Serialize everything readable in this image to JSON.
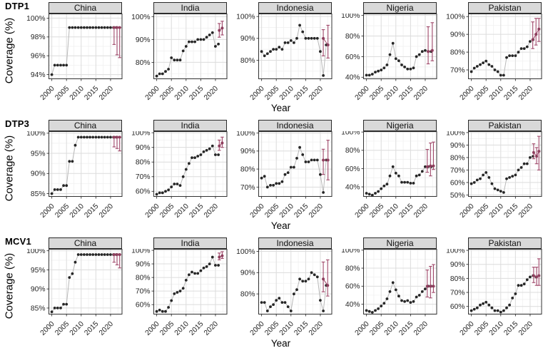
{
  "figure": {
    "row_titles": [
      "DTP1",
      "DTP3",
      "MCV1"
    ],
    "y_axis_title": "Coverage (%)",
    "x_axis_title": "Year",
    "countries": [
      "China",
      "India",
      "Indonesia",
      "Nigeria",
      "Pakistan"
    ],
    "x_ticks": [
      2000,
      2005,
      2010,
      2015,
      2020
    ],
    "xlim": [
      1999,
      2023.9
    ],
    "legend": "none",
    "grid": "major+minor",
    "colors": {
      "point": "#262626",
      "trend_line": "#b8b8b8",
      "survey": "#a0486a",
      "survey_point": "#8f3f5e",
      "strip_bg": "#d9d9d9",
      "panel_border": "#333333",
      "grid_major": "#dcdcdc",
      "grid_minor": "#efefef",
      "axis_text": "#262626"
    }
  },
  "chart_data": [
    {
      "type": "line",
      "vaccine": "DTP1",
      "country": "China",
      "start_year": 2000,
      "y_ticks": [
        94,
        96,
        98,
        100
      ],
      "ylim": [
        93.55,
        100.45
      ],
      "values": [
        94,
        95,
        95,
        95,
        95,
        95,
        99,
        99,
        99,
        99,
        99,
        99,
        99,
        99,
        99,
        99,
        99,
        99,
        99,
        99,
        99,
        99,
        99
      ],
      "survey": [
        {
          "year": 2021.2,
          "value": 99,
          "lo": 97.2,
          "hi": 99
        },
        {
          "year": 2022.2,
          "value": 99,
          "lo": 96.1,
          "hi": 99
        },
        {
          "year": 2023.1,
          "value": 99,
          "lo": 95.8,
          "hi": 99
        }
      ]
    },
    {
      "type": "line",
      "vaccine": "DTP1",
      "country": "India",
      "start_year": 2000,
      "y_ticks": [
        80,
        90,
        100
      ],
      "ylim": [
        72.8,
        101.2
      ],
      "values": [
        74,
        75,
        75,
        76,
        77,
        82,
        81,
        81,
        81,
        85,
        87,
        89,
        89,
        89,
        90,
        90,
        90,
        91,
        92,
        93,
        87,
        88
      ],
      "survey": [
        {
          "year": 2021.3,
          "value": 94,
          "lo": 91,
          "hi": 97
        },
        {
          "year": 2022.3,
          "value": 95,
          "lo": 92,
          "hi": 98
        }
      ]
    },
    {
      "type": "line",
      "vaccine": "DTP1",
      "country": "Indonesia",
      "start_year": 2000,
      "y_ticks": [
        80,
        90,
        100
      ],
      "ylim": [
        71.5,
        101.2
      ],
      "values": [
        84,
        82,
        83,
        84,
        85,
        85,
        86,
        85,
        88,
        88,
        89,
        88,
        90,
        96,
        93,
        90,
        90,
        90,
        90,
        90,
        84,
        73,
        87
      ],
      "survey": [
        {
          "year": 2021,
          "value": 90,
          "lo": 82,
          "hi": 94
        },
        {
          "year": 2022.6,
          "value": 87,
          "lo": 81,
          "hi": 96
        }
      ]
    },
    {
      "type": "line",
      "vaccine": "DTP1",
      "country": "Nigeria",
      "start_year": 2000,
      "y_ticks": [
        40,
        60,
        80,
        100
      ],
      "ylim": [
        38.5,
        101.5
      ],
      "values": [
        42,
        42,
        43,
        45,
        46,
        47,
        49,
        52,
        62,
        73,
        58,
        56,
        52,
        50,
        48,
        48,
        49,
        60,
        62,
        65,
        66,
        65,
        65
      ],
      "survey": [
        {
          "year": 2021,
          "value": 65,
          "lo": 53,
          "hi": 89
        },
        {
          "year": 2022.4,
          "value": 66,
          "lo": 56,
          "hi": 93
        }
      ]
    },
    {
      "type": "line",
      "vaccine": "DTP1",
      "country": "Pakistan",
      "start_year": 2000,
      "y_ticks": [
        70,
        80,
        90,
        100
      ],
      "ylim": [
        65,
        101.5
      ],
      "values": [
        69,
        71,
        72,
        73,
        74,
        75,
        73,
        72,
        70,
        69,
        67,
        67,
        77,
        78,
        78,
        78,
        80,
        82,
        82,
        83,
        86,
        87,
        90
      ],
      "survey": [
        {
          "year": 2020.9,
          "value": 87,
          "lo": 82,
          "hi": 97
        },
        {
          "year": 2022,
          "value": 90,
          "lo": 84,
          "hi": 99
        },
        {
          "year": 2023,
          "value": 93,
          "lo": 86,
          "hi": 99
        }
      ]
    },
    {
      "type": "line",
      "vaccine": "DTP3",
      "country": "China",
      "start_year": 2000,
      "y_ticks": [
        85,
        90,
        95,
        100
      ],
      "ylim": [
        84.3,
        100.4
      ],
      "values": [
        85,
        86,
        86,
        86,
        87,
        87,
        93,
        93,
        97,
        99,
        99,
        99,
        99,
        99,
        99,
        99,
        99,
        99,
        99,
        99,
        99,
        99,
        99
      ],
      "survey": [
        {
          "year": 2021.2,
          "value": 99,
          "lo": 96.6,
          "hi": 99
        },
        {
          "year": 2022.2,
          "value": 99,
          "lo": 96.2,
          "hi": 99
        },
        {
          "year": 2023.1,
          "value": 99,
          "lo": 95.6,
          "hi": 99
        }
      ]
    },
    {
      "type": "line",
      "vaccine": "DTP3",
      "country": "India",
      "start_year": 2000,
      "y_ticks": [
        60,
        70,
        80,
        90,
        100
      ],
      "ylim": [
        56.5,
        100.8
      ],
      "values": [
        58,
        59,
        59,
        60,
        61,
        63,
        65,
        65,
        64,
        70,
        75,
        79,
        83,
        83,
        84,
        85,
        87,
        88,
        89,
        91,
        85,
        85
      ],
      "survey": [
        {
          "year": 2021.3,
          "value": 91,
          "lo": 88,
          "hi": 95
        },
        {
          "year": 2022.3,
          "value": 93,
          "lo": 90,
          "hi": 97
        }
      ]
    },
    {
      "type": "line",
      "vaccine": "DTP3",
      "country": "Indonesia",
      "start_year": 2000,
      "y_ticks": [
        70,
        80,
        90,
        100
      ],
      "ylim": [
        64.8,
        100.8
      ],
      "values": [
        75,
        76,
        70,
        71,
        71,
        72,
        72,
        73,
        77,
        78,
        81,
        81,
        86,
        92,
        88,
        84,
        84,
        85,
        85,
        85,
        77,
        67,
        85
      ],
      "survey": [
        {
          "year": 2021,
          "value": 85,
          "lo": 77,
          "hi": 91
        },
        {
          "year": 2022.6,
          "value": 85,
          "lo": 74,
          "hi": 96
        }
      ]
    },
    {
      "type": "line",
      "vaccine": "DTP3",
      "country": "Nigeria",
      "start_year": 2000,
      "y_ticks": [
        40,
        60,
        80,
        100
      ],
      "ylim": [
        29.5,
        100.5
      ],
      "values": [
        33,
        32,
        31,
        33,
        35,
        38,
        41,
        43,
        52,
        62,
        55,
        52,
        45,
        45,
        45,
        44,
        44,
        52,
        53,
        57,
        62,
        62,
        62
      ],
      "survey": [
        {
          "year": 2020.7,
          "value": 62,
          "lo": 56,
          "hi": 81
        },
        {
          "year": 2021.8,
          "value": 63,
          "lo": 52,
          "hi": 88
        },
        {
          "year": 2022.8,
          "value": 63,
          "lo": 59,
          "hi": 89
        }
      ]
    },
    {
      "type": "line",
      "vaccine": "DTP3",
      "country": "Pakistan",
      "start_year": 2000,
      "y_ticks": [
        50,
        60,
        70,
        80,
        90,
        100
      ],
      "ylim": [
        48.8,
        100.8
      ],
      "values": [
        59,
        60,
        62,
        63,
        66,
        68,
        64,
        59,
        55,
        54,
        53,
        52,
        63,
        64,
        65,
        66,
        70,
        72,
        75,
        75,
        80,
        81
      ],
      "survey": [
        {
          "year": 2021.2,
          "value": 84,
          "lo": 79,
          "hi": 91
        },
        {
          "year": 2022.2,
          "value": 81,
          "lo": 75,
          "hi": 88
        },
        {
          "year": 2023,
          "value": 85,
          "lo": 70,
          "hi": 97
        }
      ]
    },
    {
      "type": "line",
      "vaccine": "MCV1",
      "country": "China",
      "start_year": 2000,
      "y_ticks": [
        85,
        90,
        95,
        100
      ],
      "ylim": [
        83.4,
        100.4
      ],
      "values": [
        84,
        85,
        85,
        85,
        86,
        86,
        93,
        94,
        97,
        99,
        99,
        99,
        99,
        99,
        99,
        99,
        99,
        99,
        99,
        99,
        99,
        99,
        99
      ],
      "survey": [
        {
          "year": 2021.2,
          "value": 99,
          "lo": 97,
          "hi": 99
        },
        {
          "year": 2022.2,
          "value": 99,
          "lo": 96.3,
          "hi": 99
        },
        {
          "year": 2023.1,
          "value": 99,
          "lo": 95.5,
          "hi": 99
        }
      ]
    },
    {
      "type": "line",
      "vaccine": "MCV1",
      "country": "India",
      "start_year": 2000,
      "y_ticks": [
        60,
        70,
        80,
        90,
        100
      ],
      "ylim": [
        53,
        100.8
      ],
      "values": [
        55,
        56,
        55,
        55,
        58,
        63,
        68,
        69,
        70,
        72,
        78,
        82,
        84,
        83,
        83,
        85,
        87,
        88,
        90,
        95,
        89,
        89
      ],
      "survey": [
        {
          "year": 2021.3,
          "value": 95,
          "lo": 93,
          "hi": 98
        },
        {
          "year": 2022.3,
          "value": 96,
          "lo": 94,
          "hi": 99
        }
      ]
    },
    {
      "type": "line",
      "vaccine": "MCV1",
      "country": "Indonesia",
      "start_year": 2000,
      "y_ticks": [
        80,
        90,
        100
      ],
      "ylim": [
        70.5,
        101
      ],
      "values": [
        76,
        76,
        72,
        74,
        75,
        77,
        78,
        76,
        76,
        74,
        72,
        80,
        82,
        87,
        86,
        86,
        87,
        90,
        89,
        88,
        77,
        72,
        84
      ],
      "survey": [
        {
          "year": 2021,
          "value": 87,
          "lo": 81,
          "hi": 95
        },
        {
          "year": 2022.5,
          "value": 84,
          "lo": 79,
          "hi": 96
        }
      ]
    },
    {
      "type": "line",
      "vaccine": "MCV1",
      "country": "Nigeria",
      "start_year": 2000,
      "y_ticks": [
        40,
        60,
        80,
        100
      ],
      "ylim": [
        29,
        101
      ],
      "values": [
        33,
        32,
        31,
        33,
        35,
        38,
        41,
        46,
        54,
        64,
        56,
        49,
        44,
        43,
        44,
        42,
        43,
        48,
        50,
        54,
        57,
        60,
        60
      ],
      "survey": [
        {
          "year": 2020.7,
          "value": 60,
          "lo": 48,
          "hi": 78
        },
        {
          "year": 2021.8,
          "value": 60,
          "lo": 47,
          "hi": 82
        },
        {
          "year": 2022.8,
          "value": 60,
          "lo": 53,
          "hi": 84
        }
      ]
    },
    {
      "type": "line",
      "vaccine": "MCV1",
      "country": "Pakistan",
      "start_year": 2000,
      "y_ticks": [
        60,
        70,
        80,
        90,
        100
      ],
      "ylim": [
        54.5,
        100.8
      ],
      "values": [
        57,
        58,
        59,
        61,
        62,
        63,
        61,
        59,
        57,
        57,
        56,
        57,
        59,
        61,
        66,
        69,
        75,
        75,
        76,
        79,
        81,
        82,
        81
      ],
      "survey": [
        {
          "year": 2021.2,
          "value": 82,
          "lo": 77,
          "hi": 88
        },
        {
          "year": 2022.2,
          "value": 81,
          "lo": 75,
          "hi": 88
        },
        {
          "year": 2023,
          "value": 82,
          "lo": 75,
          "hi": 94
        }
      ]
    }
  ]
}
